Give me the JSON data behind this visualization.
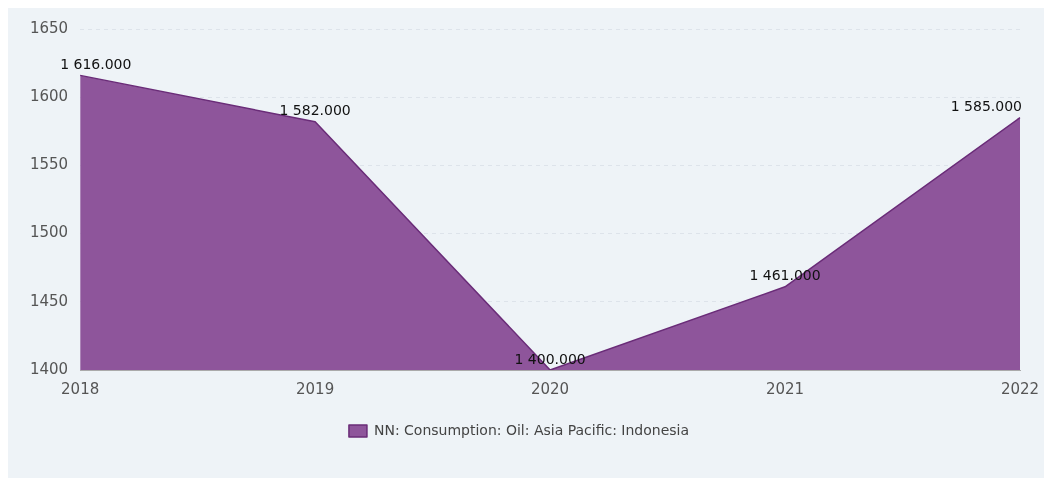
{
  "chart_data": {
    "type": "area",
    "categories": [
      "2018",
      "2019",
      "2020",
      "2021",
      "2022"
    ],
    "series": [
      {
        "name": "NN: Consumption: Oil: Asia Pacific: Indonesia",
        "color": "#8e559b",
        "values": [
          1616,
          1582,
          1400,
          1461,
          1585
        ],
        "value_labels": [
          "1 616.000",
          "1 582.000",
          "1 400.000",
          "1 461.000",
          "1 585.000"
        ]
      }
    ],
    "ylim": [
      1400,
      1650
    ],
    "yticks": [
      1400,
      1450,
      1500,
      1550,
      1600,
      1650
    ],
    "grid": "y",
    "legend": "bottom"
  }
}
